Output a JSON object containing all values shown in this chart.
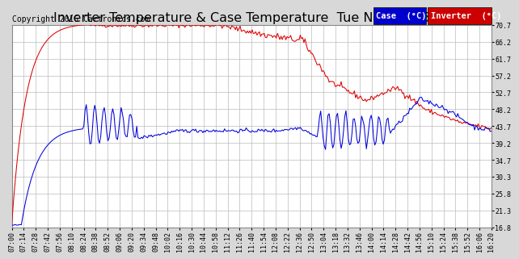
{
  "title": "Inverter Temperature & Case Temperature  Tue Nov 29 16:22",
  "copyright": "Copyright 2016 Cartronics.com",
  "yticks": [
    16.8,
    21.3,
    25.8,
    30.3,
    34.7,
    39.2,
    43.7,
    48.2,
    52.7,
    57.2,
    61.7,
    66.2,
    70.7
  ],
  "ylim": [
    16.8,
    70.7
  ],
  "bg_color": "#e8e8e8",
  "plot_bg": "#ffffff",
  "grid_color": "#bbbbbb",
  "case_color": "#0000dd",
  "inverter_color": "#dd0000",
  "legend_case_bg": "#0000cc",
  "legend_inv_bg": "#cc0000",
  "xtick_labels": [
    "07:00",
    "07:14",
    "07:28",
    "07:42",
    "07:56",
    "08:10",
    "08:24",
    "08:38",
    "08:52",
    "09:06",
    "09:20",
    "09:34",
    "09:48",
    "10:02",
    "10:16",
    "10:30",
    "10:44",
    "10:58",
    "11:12",
    "11:26",
    "11:40",
    "11:54",
    "12:08",
    "12:22",
    "12:36",
    "12:50",
    "13:04",
    "13:18",
    "13:32",
    "13:46",
    "14:00",
    "14:14",
    "14:28",
    "14:42",
    "14:56",
    "15:10",
    "15:24",
    "15:38",
    "15:52",
    "16:06",
    "16:20"
  ],
  "title_fontsize": 11.5,
  "copyright_fontsize": 7,
  "tick_fontsize": 6,
  "legend_fontsize": 7.5
}
